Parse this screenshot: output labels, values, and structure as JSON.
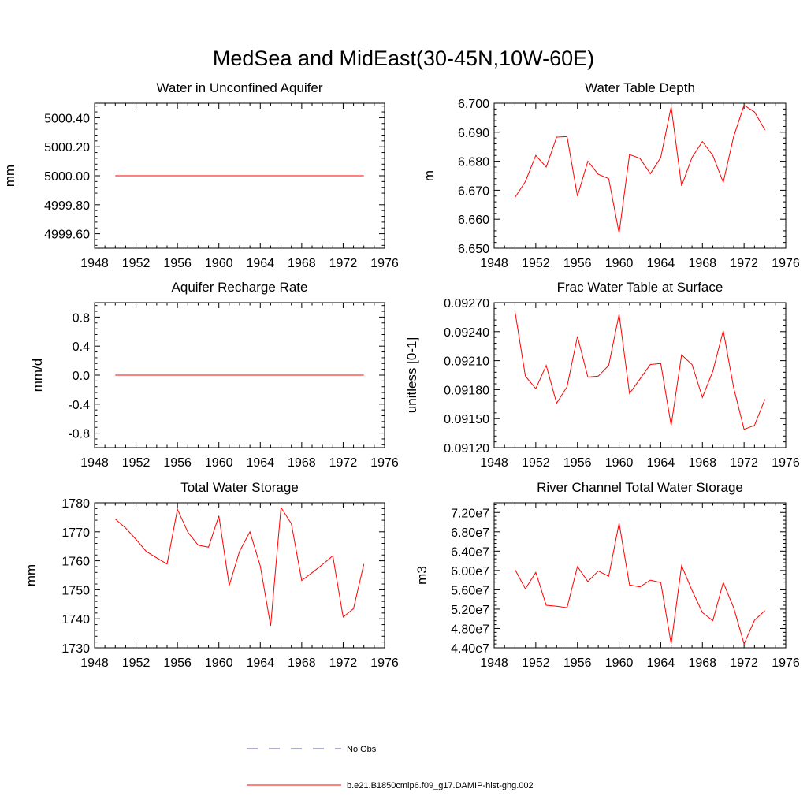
{
  "figure": {
    "title": "MedSea and MidEast(30-45N,10W-60E)"
  },
  "legend": {
    "obs_label": "No Obs",
    "obs_color": "#5a5ab0",
    "model_label": "b.e21.B1850cmip6.f09_g17.DAMIP-hist-ghg.002",
    "model_color": "#ff0000"
  },
  "chart_data": [
    {
      "type": "line",
      "title": "Water in Unconfined Aquifer",
      "ylabel": "mm",
      "xlim": [
        1948,
        1976
      ],
      "xticks": [
        "1948",
        "1952",
        "1956",
        "1960",
        "1964",
        "1968",
        "1972",
        "1976"
      ],
      "ylim": [
        4999.5,
        5000.5
      ],
      "yticks": [
        "4999.60",
        "4999.80",
        "5000.00",
        "5000.20",
        "5000.40"
      ],
      "yticks_values": [
        4999.6,
        4999.8,
        5000.0,
        5000.2,
        5000.4
      ],
      "x": [
        1950,
        1951,
        1952,
        1953,
        1954,
        1955,
        1956,
        1957,
        1958,
        1959,
        1960,
        1961,
        1962,
        1963,
        1964,
        1965,
        1966,
        1967,
        1968,
        1969,
        1970,
        1971,
        1972,
        1973,
        1974
      ],
      "series": [
        {
          "color": "#ff0000",
          "values": [
            5000,
            5000,
            5000,
            5000,
            5000,
            5000,
            5000,
            5000,
            5000,
            5000,
            5000,
            5000,
            5000,
            5000,
            5000,
            5000,
            5000,
            5000,
            5000,
            5000,
            5000,
            5000,
            5000,
            5000,
            5000
          ]
        }
      ]
    },
    {
      "type": "line",
      "title": "Water Table Depth",
      "ylabel": "m",
      "xlim": [
        1948,
        1976
      ],
      "xticks": [
        "1948",
        "1952",
        "1956",
        "1960",
        "1964",
        "1968",
        "1972",
        "1976"
      ],
      "ylim": [
        6.65,
        6.7
      ],
      "yticks": [
        "6.650",
        "6.660",
        "6.670",
        "6.680",
        "6.690",
        "6.700"
      ],
      "yticks_values": [
        6.65,
        6.66,
        6.67,
        6.68,
        6.69,
        6.7
      ],
      "x": [
        1950,
        1951,
        1952,
        1953,
        1954,
        1955,
        1956,
        1957,
        1958,
        1959,
        1960,
        1961,
        1962,
        1963,
        1964,
        1965,
        1966,
        1967,
        1968,
        1969,
        1970,
        1971,
        1972,
        1973,
        1974
      ],
      "series": [
        {
          "color": "#ff0000",
          "values": [
            6.6675,
            6.673,
            6.682,
            6.678,
            6.6883,
            6.6885,
            6.668,
            6.68,
            6.6755,
            6.674,
            6.6552,
            6.6823,
            6.681,
            6.6757,
            6.6813,
            6.6988,
            6.6715,
            6.6813,
            6.6868,
            6.682,
            6.6727,
            6.6885,
            6.6993,
            6.697,
            6.6908
          ]
        }
      ]
    },
    {
      "type": "line",
      "title": "Aquifer Recharge Rate",
      "ylabel": "mm/d",
      "xlim": [
        1948,
        1976
      ],
      "xticks": [
        "1948",
        "1952",
        "1956",
        "1960",
        "1964",
        "1968",
        "1972",
        "1976"
      ],
      "ylim": [
        -1.0,
        1.0
      ],
      "yticks": [
        "-0.8",
        "-0.4",
        "0.0",
        "0.4",
        "0.8"
      ],
      "yticks_values": [
        -0.8,
        -0.4,
        0.0,
        0.4,
        0.8
      ],
      "x": [
        1950,
        1951,
        1952,
        1953,
        1954,
        1955,
        1956,
        1957,
        1958,
        1959,
        1960,
        1961,
        1962,
        1963,
        1964,
        1965,
        1966,
        1967,
        1968,
        1969,
        1970,
        1971,
        1972,
        1973,
        1974
      ],
      "series": [
        {
          "color": "#ff0000",
          "values": [
            0,
            0,
            0,
            0,
            0,
            0,
            0,
            0,
            0,
            0,
            0,
            0,
            0,
            0,
            0,
            0,
            0,
            0,
            0,
            0,
            0,
            0,
            0,
            0,
            0
          ]
        }
      ]
    },
    {
      "type": "line",
      "title": "Frac Water Table at Surface",
      "ylabel": "unitless [0-1]",
      "xlim": [
        1948,
        1976
      ],
      "xticks": [
        "1948",
        "1952",
        "1956",
        "1960",
        "1964",
        "1968",
        "1972",
        "1976"
      ],
      "ylim": [
        0.0912,
        0.0927
      ],
      "yticks": [
        "0.09120",
        "0.09150",
        "0.09180",
        "0.09210",
        "0.09240",
        "0.09270"
      ],
      "yticks_values": [
        0.0912,
        0.0915,
        0.0918,
        0.0921,
        0.0924,
        0.0927
      ],
      "x": [
        1950,
        1951,
        1952,
        1953,
        1954,
        1955,
        1956,
        1957,
        1958,
        1959,
        1960,
        1961,
        1962,
        1963,
        1964,
        1965,
        1966,
        1967,
        1968,
        1969,
        1970,
        1971,
        1972,
        1973,
        1974
      ],
      "series": [
        {
          "color": "#ff0000",
          "values": [
            0.09261,
            0.09194,
            0.09181,
            0.09205,
            0.09166,
            0.09183,
            0.09235,
            0.09193,
            0.09194,
            0.09205,
            0.09258,
            0.09176,
            0.09191,
            0.09206,
            0.09207,
            0.09143,
            0.09216,
            0.09206,
            0.09172,
            0.09199,
            0.09241,
            0.09182,
            0.09139,
            0.09143,
            0.0917
          ]
        }
      ]
    },
    {
      "type": "line",
      "title": "Total Water Storage",
      "ylabel": "mm",
      "xlim": [
        1948,
        1976
      ],
      "xticks": [
        "1948",
        "1952",
        "1956",
        "1960",
        "1964",
        "1968",
        "1972",
        "1976"
      ],
      "ylim": [
        1730,
        1780
      ],
      "yticks": [
        "1730",
        "1740",
        "1750",
        "1760",
        "1770",
        "1780"
      ],
      "yticks_values": [
        1730,
        1740,
        1750,
        1760,
        1770,
        1780
      ],
      "x": [
        1950,
        1951,
        1952,
        1953,
        1954,
        1955,
        1956,
        1957,
        1958,
        1959,
        1960,
        1961,
        1962,
        1963,
        1964,
        1965,
        1966,
        1967,
        1968,
        1969,
        1970,
        1971,
        1972,
        1973,
        1974
      ],
      "series": [
        {
          "color": "#ff0000",
          "values": [
            1774.4,
            1771.3,
            1767.4,
            1763.2,
            1761.0,
            1758.9,
            1777.8,
            1769.9,
            1765.4,
            1764.7,
            1775.5,
            1751.5,
            1763.3,
            1770.0,
            1758.2,
            1737.6,
            1778.4,
            1772.8,
            1753.2,
            1755.9,
            1758.7,
            1761.7,
            1740.6,
            1743.5,
            1758.9
          ]
        }
      ]
    },
    {
      "type": "line",
      "title": "River Channel Total Water Storage",
      "ylabel": "m3",
      "xlim": [
        1948,
        1976
      ],
      "xticks": [
        "1948",
        "1952",
        "1956",
        "1960",
        "1964",
        "1968",
        "1972",
        "1976"
      ],
      "ylim": [
        44000000,
        74000000
      ],
      "yticks": [
        "4.40e7",
        "4.80e7",
        "5.20e7",
        "5.60e7",
        "6.00e7",
        "6.40e7",
        "6.80e7",
        "7.20e7"
      ],
      "yticks_values": [
        44000000,
        48000000,
        52000000,
        56000000,
        60000000,
        64000000,
        68000000,
        72000000
      ],
      "x": [
        1950,
        1951,
        1952,
        1953,
        1954,
        1955,
        1956,
        1957,
        1958,
        1959,
        1960,
        1961,
        1962,
        1963,
        1964,
        1965,
        1966,
        1967,
        1968,
        1969,
        1970,
        1971,
        1972,
        1973,
        1974
      ],
      "series": [
        {
          "color": "#ff0000",
          "values": [
            60200000,
            56200000,
            59600000,
            52800000,
            52600000,
            52300000,
            60800000,
            57700000,
            59900000,
            58800000,
            69800000,
            57000000,
            56600000,
            58000000,
            57500000,
            44800000,
            61000000,
            55900000,
            51300000,
            49600000,
            57500000,
            52300000,
            44800000,
            49700000,
            51700000
          ]
        }
      ]
    }
  ]
}
